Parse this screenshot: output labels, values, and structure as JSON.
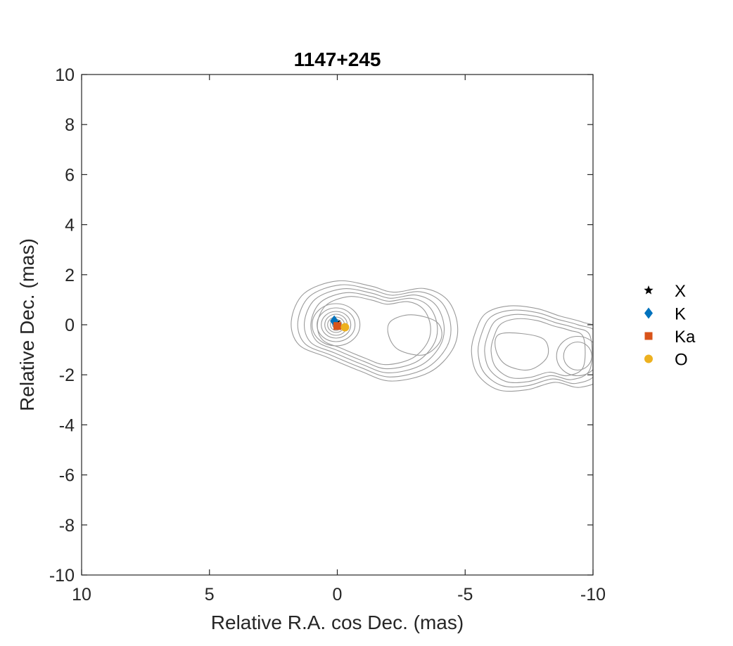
{
  "chart_data": {
    "type": "scatter",
    "title": "1147+245",
    "xlabel": "Relative R.A. cos Dec. (mas)",
    "ylabel": "Relative Dec. (mas)",
    "xlim": [
      10,
      -10
    ],
    "ylim": [
      -10,
      10
    ],
    "x_reversed": true,
    "x_ticks": [
      10,
      5,
      0,
      -5,
      -10
    ],
    "x_tick_labels": [
      "10",
      "5",
      "0",
      "-5",
      "-10"
    ],
    "y_ticks": [
      -10,
      -8,
      -6,
      -4,
      -2,
      0,
      2,
      4,
      6,
      8,
      10
    ],
    "y_tick_labels": [
      "-10",
      "-8",
      "-6",
      "-4",
      "-2",
      "0",
      "2",
      "4",
      "6",
      "8",
      "10"
    ],
    "grid": false,
    "legend_position": "outside-right",
    "series": [
      {
        "name": "X",
        "marker": "star",
        "color": "#000000",
        "x": [
          0.05
        ],
        "y": [
          0.1
        ]
      },
      {
        "name": "K",
        "marker": "diamond",
        "color": "#0072BD",
        "x": [
          0.12
        ],
        "y": [
          0.15
        ]
      },
      {
        "name": "Ka",
        "marker": "square",
        "color": "#D95319",
        "x": [
          0.0
        ],
        "y": [
          -0.05
        ]
      },
      {
        "name": "O",
        "marker": "circle",
        "color": "#EDB120",
        "x": [
          -0.3
        ],
        "y": [
          -0.1
        ]
      }
    ],
    "contour_color": "#9a9a9a",
    "contour_components": [
      {
        "name": "core",
        "x": 0.0,
        "y": 0.0
      },
      {
        "name": "jet-inner",
        "x": -3.0,
        "y": -0.4
      },
      {
        "name": "jet-outer",
        "x": -7.0,
        "y": -0.9
      },
      {
        "name": "jet-edge",
        "x": -9.4,
        "y": -1.25
      }
    ]
  }
}
